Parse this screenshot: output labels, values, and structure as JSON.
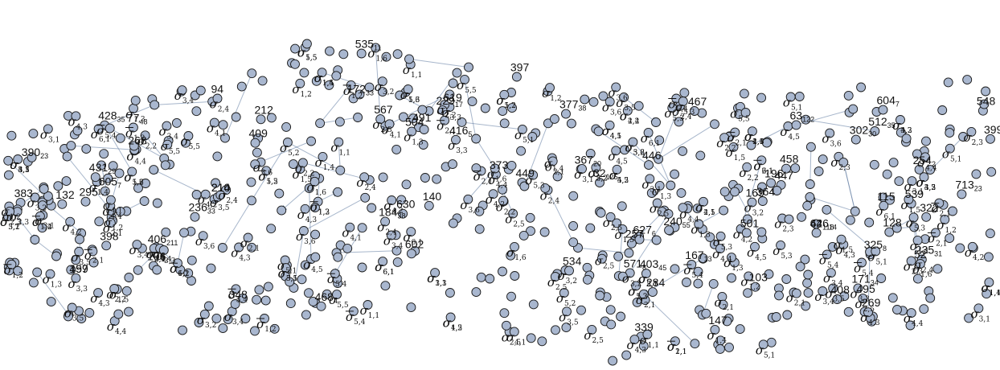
{
  "diagram": {
    "type": "directed-network",
    "colors": {
      "node_fill": "#a9b7cf",
      "node_stroke": "#1a1a1a",
      "edge": "#5f7aa0",
      "background": "#ffffff"
    },
    "number_labels": [
      {
        "n": "171",
        "s": "34"
      },
      {
        "n": "172",
        "s": "33"
      },
      {
        "n": "235",
        "s": "31"
      },
      {
        "n": "302",
        "s": "30"
      },
      {
        "n": "403",
        "s": "45"
      },
      {
        "n": "339",
        "s": ""
      },
      {
        "n": "236",
        "s": "33"
      },
      {
        "n": "377",
        "s": "38"
      },
      {
        "n": "428",
        "s": "35"
      },
      {
        "n": "367",
        "s": "20"
      },
      {
        "n": "167",
        "s": "13"
      },
      {
        "n": "713",
        "s": "23"
      },
      {
        "n": "431",
        "s": "29"
      },
      {
        "n": "229",
        "s": "17"
      },
      {
        "n": "390",
        "s": "23"
      },
      {
        "n": "447",
        "s": ""
      },
      {
        "n": "535",
        "s": "11"
      },
      {
        "n": "571",
        "s": "8"
      },
      {
        "n": "604",
        "s": "7"
      },
      {
        "n": "416",
        "s": "5"
      },
      {
        "n": "627",
        "s": "6"
      },
      {
        "n": "605",
        "s": "7"
      },
      {
        "n": "468",
        "s": "4"
      },
      {
        "n": "534",
        "s": ""
      },
      {
        "n": "495",
        "s": ""
      },
      {
        "n": "295",
        "s": ""
      },
      {
        "n": "446",
        "s": "14"
      },
      {
        "n": "132",
        "s": ""
      },
      {
        "n": "115",
        "s": ""
      },
      {
        "n": "269",
        "s": ""
      },
      {
        "n": "94",
        "s": ""
      },
      {
        "n": "62",
        "s": "118"
      },
      {
        "n": "32",
        "s": "125"
      },
      {
        "n": "63",
        "s": "122"
      },
      {
        "n": "106",
        "s": ""
      },
      {
        "n": "103",
        "s": ""
      },
      {
        "n": "52",
        "s": ""
      },
      {
        "n": "406",
        "s": "211"
      },
      {
        "n": "512",
        "s": "35"
      },
      {
        "n": "184",
        "s": "38"
      },
      {
        "n": "77",
        "s": "48"
      },
      {
        "n": "240",
        "s": "55"
      },
      {
        "n": "408",
        "s": ""
      },
      {
        "n": "409",
        "s": ""
      },
      {
        "n": "210",
        "s": ""
      },
      {
        "n": "257",
        "s": ""
      },
      {
        "n": "325",
        "s": "8"
      },
      {
        "n": "630",
        "s": ""
      },
      {
        "n": "619",
        "s": ""
      },
      {
        "n": "458",
        "s": ""
      },
      {
        "n": "501",
        "s": ""
      },
      {
        "n": "567",
        "s": ""
      },
      {
        "n": "539",
        "s": ""
      },
      {
        "n": "548",
        "s": ""
      },
      {
        "n": "383",
        "s": ""
      },
      {
        "n": "254",
        "s": "2"
      },
      {
        "n": "398",
        "s": ""
      },
      {
        "n": "399",
        "s": ""
      },
      {
        "n": "491",
        "s": ""
      },
      {
        "n": "128",
        "s": ""
      },
      {
        "n": "212",
        "s": ""
      },
      {
        "n": "169",
        "s": ""
      },
      {
        "n": "364",
        "s": ""
      },
      {
        "n": "397",
        "s": ""
      },
      {
        "n": "499",
        "s": ""
      },
      {
        "n": "449",
        "s": ""
      },
      {
        "n": "602",
        "s": ""
      },
      {
        "n": "504",
        "s": ""
      },
      {
        "n": "284",
        "s": ""
      },
      {
        "n": "214",
        "s": ""
      },
      {
        "n": "147",
        "s": ""
      },
      {
        "n": "446",
        "s": ""
      },
      {
        "n": "348",
        "s": ""
      },
      {
        "n": "140",
        "s": ""
      },
      {
        "n": "373",
        "s": ""
      },
      {
        "n": "196",
        "s": ""
      },
      {
        "n": "322",
        "s": ""
      },
      {
        "n": "467",
        "s": ""
      },
      {
        "n": "268",
        "s": ""
      },
      {
        "n": "157",
        "s": ""
      }
    ],
    "sigma_labels": [
      {
        "s": "1,2",
        "bar": true
      },
      {
        "s": "2,1",
        "bar": false
      },
      {
        "s": "1,3",
        "bar": false
      },
      {
        "s": "3,4",
        "bar": false
      },
      {
        "s": "2,5",
        "bar": false
      },
      {
        "s": "5,2",
        "bar": false
      },
      {
        "s": "1,5",
        "bar": false
      },
      {
        "s": "2,4",
        "bar": false
      },
      {
        "s": "3,5",
        "bar": false
      },
      {
        "s": "4,4",
        "bar": false
      },
      {
        "s": "4,2",
        "bar": false
      },
      {
        "s": "4,5",
        "bar": false
      },
      {
        "s": "3,2",
        "bar": false
      },
      {
        "s": "2,1",
        "bar": true
      },
      {
        "s": "1,2",
        "bar": false
      },
      {
        "s": "4,3",
        "bar": false
      },
      {
        "s": "5,3",
        "bar": false
      },
      {
        "s": "3,1",
        "bar": false
      },
      {
        "s": "1,4",
        "bar": false
      },
      {
        "s": "5,4",
        "bar": true
      },
      {
        "s": "2,3",
        "bar": false
      },
      {
        "s": "3,3",
        "bar": false
      },
      {
        "s": "4,1",
        "bar": false
      },
      {
        "s": "5,1",
        "bar": false
      },
      {
        "s": "1,1",
        "bar": false
      },
      {
        "s": "6,1",
        "bar": false
      },
      {
        "s": "2,2",
        "bar": false
      },
      {
        "s": "1,6",
        "bar": false
      },
      {
        "s": "3,6",
        "bar": false
      },
      {
        "s": "5,5",
        "bar": false
      }
    ]
  }
}
